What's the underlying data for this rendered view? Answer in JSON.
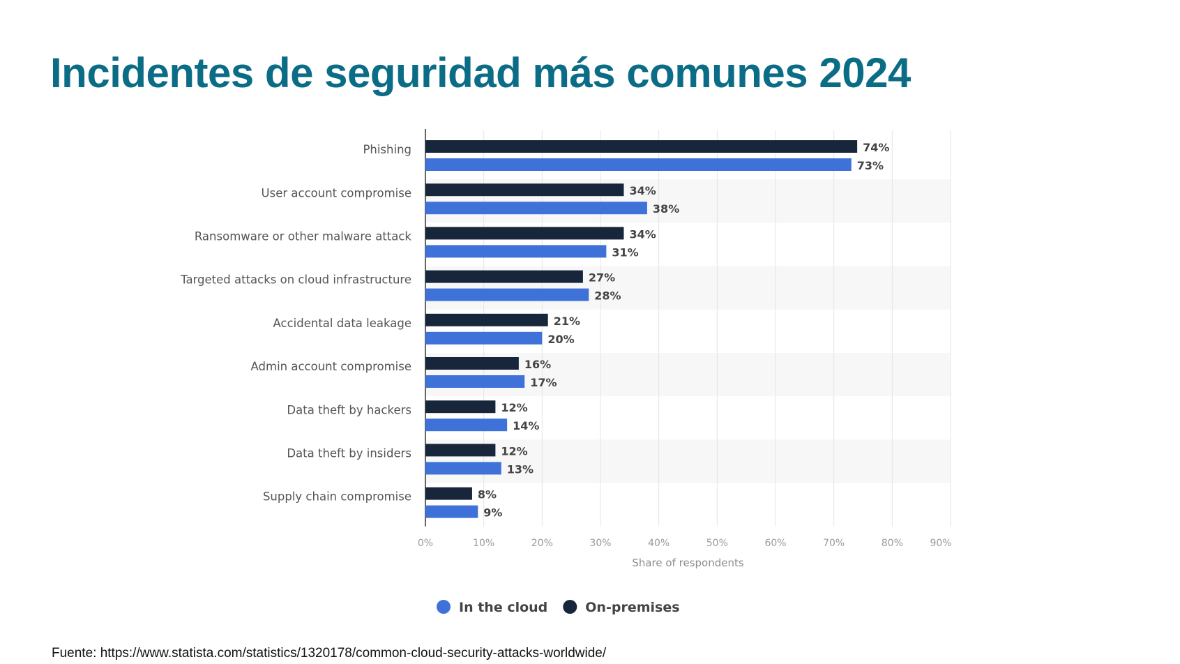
{
  "title": "Incidentes de seguridad más comunes 2024",
  "footer": "Fuente: https://www.statista.com/statistics/1320178/common-cloud-security-attacks-worldwide/",
  "chart_data": {
    "type": "bar",
    "orientation": "horizontal",
    "categories": [
      "Phishing",
      "User account compromise",
      "Ransomware or other malware attack",
      "Targeted attacks on cloud infrastructure",
      "Accidental data leakage",
      "Admin account compromise",
      "Data theft by hackers",
      "Data theft by insiders",
      "Supply chain compromise"
    ],
    "series": [
      {
        "name": "On-premises",
        "color": "#18263b",
        "values": [
          74,
          34,
          34,
          27,
          21,
          16,
          12,
          12,
          8
        ]
      },
      {
        "name": "In the cloud",
        "color": "#3f72d8",
        "values": [
          73,
          38,
          31,
          28,
          20,
          17,
          14,
          13,
          9
        ]
      }
    ],
    "legend_order": [
      "In the cloud",
      "On-premises"
    ],
    "xlabel": "Share of respondents",
    "ylabel": "",
    "xlim": [
      0,
      90
    ],
    "xticks": [
      "0%",
      "10%",
      "20%",
      "30%",
      "40%",
      "50%",
      "60%",
      "70%",
      "80%",
      "90%"
    ],
    "value_suffix": "%",
    "grid": true,
    "legend_position": "bottom"
  }
}
